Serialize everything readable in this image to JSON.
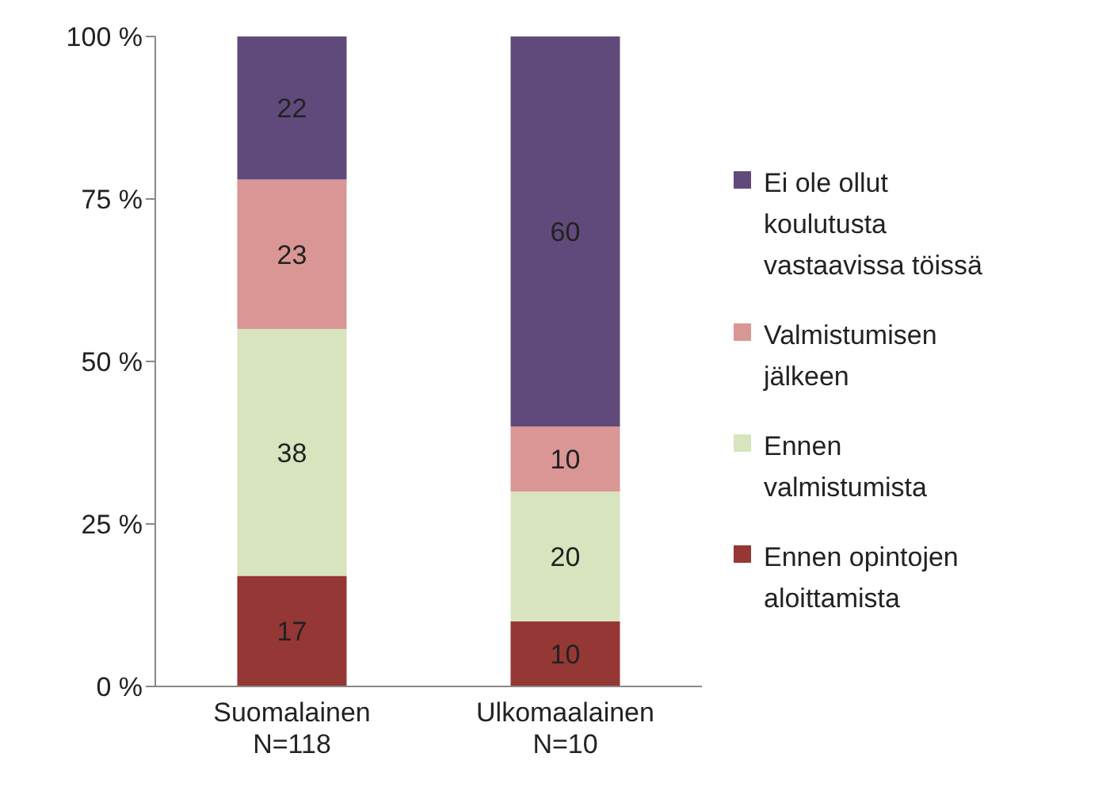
{
  "chart_data": {
    "type": "bar",
    "stacked": true,
    "categories": [
      "Suomalainen\nN=118",
      "Ulkomaalainen\nN=10"
    ],
    "series": [
      {
        "name": "Ennen opintojen aloittamista",
        "color": "#953735",
        "values": [
          17,
          10
        ]
      },
      {
        "name": "Ennen valmistumista",
        "color": "#d7e4bd",
        "values": [
          38,
          20
        ]
      },
      {
        "name": "Valmistumisen jälkeen",
        "color": "#d99694",
        "values": [
          23,
          10
        ]
      },
      {
        "name": "Ei ole ollut koulutusta vastaavissa töissä",
        "color": "#604a7b",
        "values": [
          22,
          60
        ]
      }
    ],
    "ylim": [
      0,
      100
    ],
    "yticks": [
      {
        "value": 0,
        "label": "0 %"
      },
      {
        "value": 25,
        "label": "25 %"
      },
      {
        "value": 50,
        "label": "50 %"
      },
      {
        "value": 75,
        "label": "75 %"
      },
      {
        "value": 100,
        "label": "100 %"
      }
    ],
    "data_labels": true,
    "grid": false,
    "legend": "right"
  }
}
